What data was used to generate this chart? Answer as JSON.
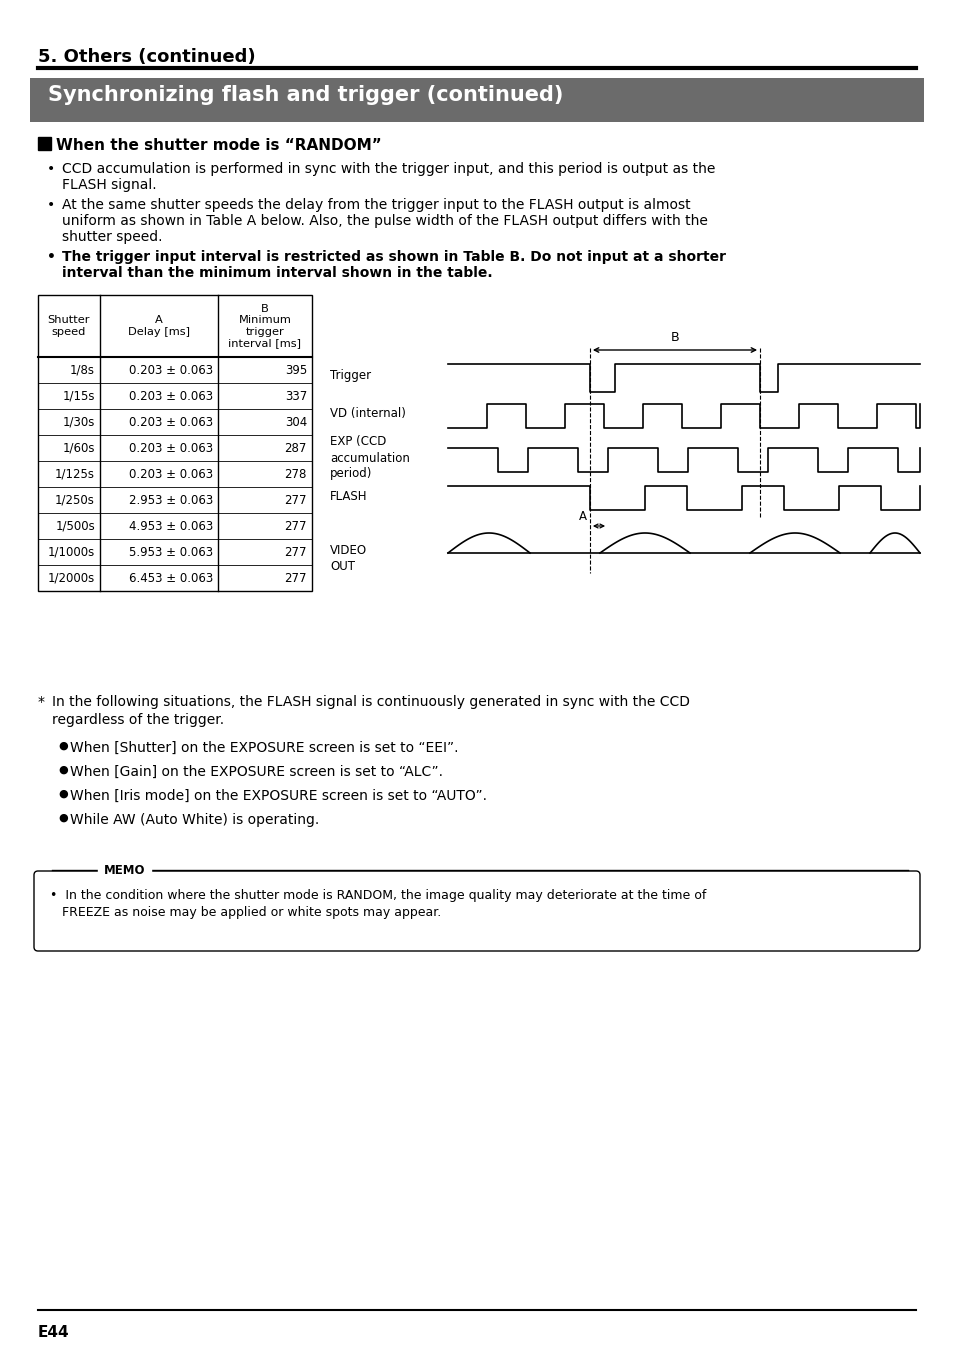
{
  "page_title": "5. Others (continued)",
  "section_title": "Synchronizing flash and trigger (continued)",
  "section_bg": "#6b6b6b",
  "section_fg": "#ffffff",
  "subsection_title": "When the shutter mode is “RANDOM”",
  "table_headers": [
    "Shutter\nspeed",
    "A\nDelay [ms]",
    "B\nMinimum\ntrigger\ninterval [ms]"
  ],
  "table_rows": [
    [
      "1/8s",
      "0.203 ± 0.063",
      "395"
    ],
    [
      "1/15s",
      "0.203 ± 0.063",
      "337"
    ],
    [
      "1/30s",
      "0.203 ± 0.063",
      "304"
    ],
    [
      "1/60s",
      "0.203 ± 0.063",
      "287"
    ],
    [
      "1/125s",
      "0.203 ± 0.063",
      "278"
    ],
    [
      "1/250s",
      "2.953 ± 0.063",
      "277"
    ],
    [
      "1/500s",
      "4.953 ± 0.063",
      "277"
    ],
    [
      "1/1000s",
      "5.953 ± 0.063",
      "277"
    ],
    [
      "1/2000s",
      "6.453 ± 0.063",
      "277"
    ]
  ],
  "footnote_star": "In the following situations, the FLASH signal is continuously generated in sync with the CCD\nregardless of the trigger.",
  "footnote_bullets": [
    "When [Shutter] on the EXPOSURE screen is set to “EEI”.",
    "When [Gain] on the EXPOSURE screen is set to “ALC”.",
    "When [Iris mode] on the EXPOSURE screen is set to “AUTO”.",
    "While AW (Auto White) is operating."
  ],
  "memo_title": "MEMO",
  "memo_line1": "In the condition where the shutter mode is RANDOM, the image quality may deteriorate at the time of",
  "memo_line2": "FREEZE as noise may be applied or white spots may appear.",
  "page_num": "E44",
  "bg_color": "#ffffff",
  "text_color": "#000000"
}
